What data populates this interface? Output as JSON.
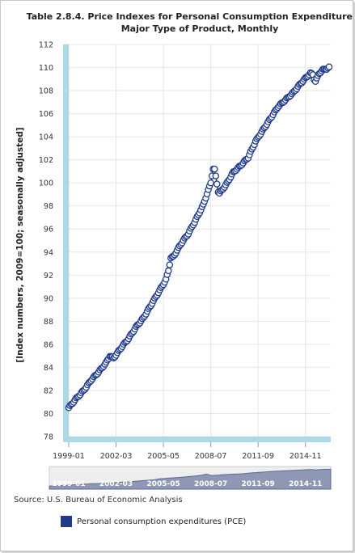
{
  "chart_data": {
    "type": "line",
    "title": "Table 2.8.4. Price Indexes for Personal Consumption Expenditures by Major Type of Product, Monthly",
    "title_lines": [
      "Table 2.8.4. Price Indexes for Personal Consumption Expenditures by",
      "Major Type of Product, Monthly"
    ],
    "ylabel": "[Index numbers, 2009=100; seasonally adjusted]",
    "xlabel": "",
    "ylim": [
      78,
      112
    ],
    "y_ticks": [
      "78",
      "80",
      "82",
      "84",
      "86",
      "88",
      "90",
      "92",
      "94",
      "96",
      "98",
      "100",
      "102",
      "104",
      "106",
      "108",
      "110",
      "112"
    ],
    "x_start": "1999-01",
    "x_ticks": [
      "1999-01",
      "2002-03",
      "2005-05",
      "2008-07",
      "2011-09",
      "2014-11"
    ],
    "grid": true,
    "marker": "circle",
    "series": [
      {
        "name": "Personal consumption expenditures (PCE)",
        "color": "#1f3a8a",
        "anchors": [
          [
            0,
            80.5
          ],
          [
            6,
            81.3
          ],
          [
            12,
            82.0
          ],
          [
            18,
            82.9
          ],
          [
            24,
            83.6
          ],
          [
            30,
            84.4
          ],
          [
            33,
            85.0
          ],
          [
            36,
            84.8
          ],
          [
            42,
            85.7
          ],
          [
            48,
            86.5
          ],
          [
            54,
            87.5
          ],
          [
            60,
            88.3
          ],
          [
            66,
            89.4
          ],
          [
            72,
            90.5
          ],
          [
            78,
            91.6
          ],
          [
            80,
            92.4
          ],
          [
            82,
            93.5
          ],
          [
            84,
            93.6
          ],
          [
            90,
            94.7
          ],
          [
            96,
            95.6
          ],
          [
            102,
            96.8
          ],
          [
            108,
            98.1
          ],
          [
            114,
            100.0
          ],
          [
            116,
            101.2
          ],
          [
            117,
            101.2
          ],
          [
            118,
            100.6
          ],
          [
            120,
            99.2
          ],
          [
            121,
            99.1
          ],
          [
            126,
            99.8
          ],
          [
            132,
            100.9
          ],
          [
            138,
            101.5
          ],
          [
            144,
            102.2
          ],
          [
            150,
            103.6
          ],
          [
            156,
            104.6
          ],
          [
            162,
            105.6
          ],
          [
            168,
            106.6
          ],
          [
            174,
            107.2
          ],
          [
            180,
            107.8
          ],
          [
            186,
            108.6
          ],
          [
            192,
            109.3
          ],
          [
            194,
            109.5
          ],
          [
            196,
            109.4
          ],
          [
            197,
            109.0
          ],
          [
            198,
            108.8
          ],
          [
            201,
            109.5
          ],
          [
            204,
            109.8
          ],
          [
            207,
            109.9
          ],
          [
            209,
            110.0
          ]
        ]
      }
    ],
    "navigator_labels": [
      "1999-01",
      "2002-03",
      "2005-05",
      "2008-07",
      "2011-09",
      "2014-11"
    ],
    "source": "Source: U.S. Bureau of Economic Analysis",
    "legend_position": "bottom",
    "colors": {
      "plot_border": "#add8e6",
      "grid": "#e6e6e6",
      "marker_fill": "#ffffff",
      "navigator_bg": "#eeeeee",
      "navigator_area": "#8e98b5"
    }
  }
}
